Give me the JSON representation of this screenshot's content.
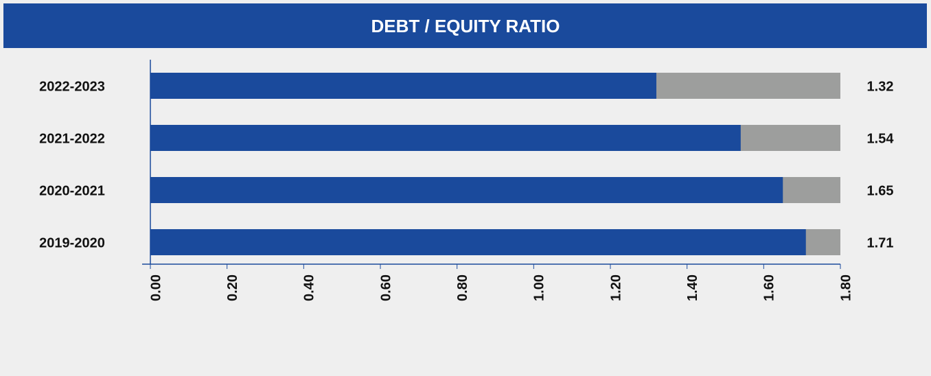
{
  "chart_data": {
    "type": "bar",
    "title": "DEBT / EQUITY RATIO",
    "categories": [
      "2022-2023",
      "2021-2022",
      "2020-2021",
      "2019-2020"
    ],
    "values": [
      1.32,
      1.54,
      1.65,
      1.71
    ],
    "color": "#1a4a9c",
    "track_color": "#9d9e9d",
    "xlim": [
      0,
      1.8
    ],
    "xticks": [
      {
        "value": 0,
        "label": "0.00"
      },
      {
        "value": 0.2,
        "label": "0.20"
      },
      {
        "value": 0.4,
        "label": "0.40"
      },
      {
        "value": 0.6,
        "label": "0.60"
      },
      {
        "value": 0.8,
        "label": "0.80"
      },
      {
        "value": 1,
        "label": "1.00"
      },
      {
        "value": 1.2,
        "label": "1.20"
      },
      {
        "value": 1.4,
        "label": "1.40"
      },
      {
        "value": 1.6,
        "label": "1.60"
      },
      {
        "value": 1.8,
        "label": "1.80"
      }
    ]
  }
}
